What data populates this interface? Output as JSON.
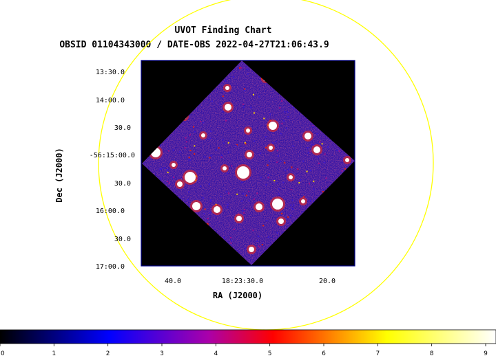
{
  "title": "UVOT Finding Chart",
  "subtitle": "OBSID 01104343000 / DATE-OBS 2022-04-27T21:06:43.9",
  "xlabel": "RA (J2000)",
  "ylabel": "Dec (J2000)",
  "ra_ticks": [
    "40.0",
    "18:23:30.0",
    "20.0"
  ],
  "dec_ticks": [
    "13:30.0",
    "14:00.0",
    "30.0",
    "-56:15:00.0",
    "30.0",
    "16:00.0",
    "30.0",
    "17:00.0"
  ],
  "colorbar": {
    "ticks": [
      "0",
      "1",
      "2",
      "3",
      "4",
      "5",
      "6",
      "7",
      "8",
      "9"
    ],
    "colors": [
      "#000000",
      "#0000ff",
      "#ff0000",
      "#ffff00",
      "#ffffff"
    ]
  },
  "colors": {
    "frame": "#00008b",
    "circle": "#ffff00",
    "background": "#000000"
  }
}
